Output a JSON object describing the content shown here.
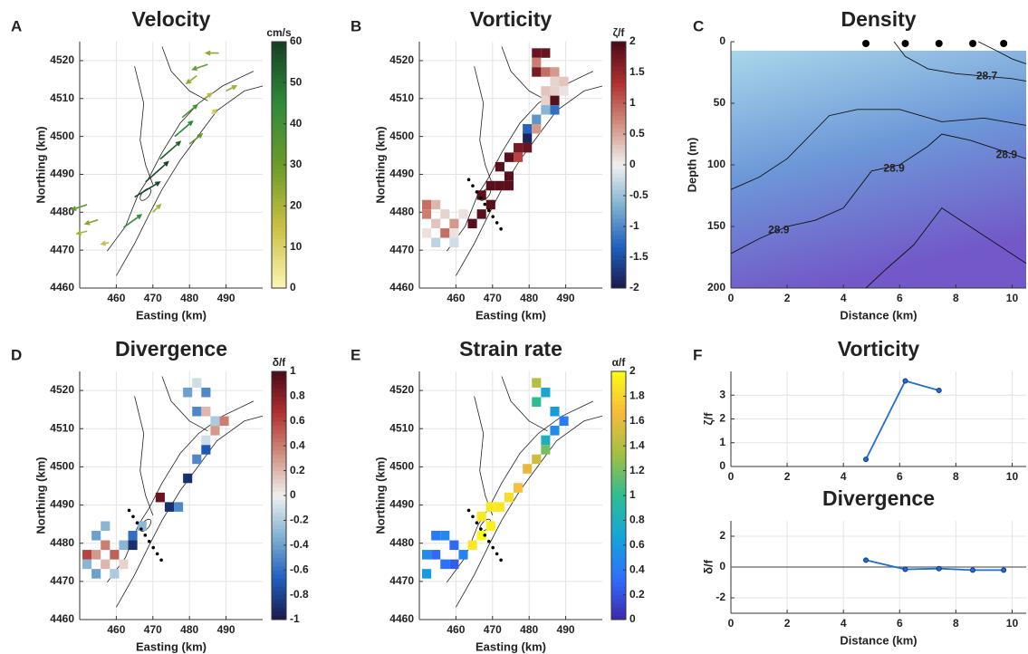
{
  "chart_data": [
    {
      "panel": "A",
      "type": "quiver",
      "title": "Velocity",
      "xlabel": "Easting (km)",
      "ylabel": "Northing (km)",
      "xlim": [
        450,
        500
      ],
      "ylim": [
        4460,
        4525
      ],
      "xticks": [
        460,
        470,
        480,
        490
      ],
      "yticks": [
        4460,
        4470,
        4480,
        4490,
        4500,
        4510,
        4520
      ],
      "grid": true,
      "x": [
        488,
        485,
        482,
        490,
        484,
        478,
        476,
        472,
        468,
        465,
        455,
        452,
        458,
        462,
        470,
        480,
        486,
        452
      ],
      "y": [
        4522,
        4519,
        4516,
        4512,
        4510,
        4505,
        4500,
        4494,
        4488,
        4484,
        4478,
        4475,
        4472,
        4476,
        4480,
        4498,
        4506,
        4482
      ],
      "u": [
        -25,
        -30,
        -20,
        20,
        15,
        30,
        35,
        40,
        45,
        50,
        -25,
        -20,
        -15,
        35,
        15,
        25,
        10,
        -30
      ],
      "v": [
        0,
        -10,
        -15,
        10,
        10,
        25,
        30,
        35,
        40,
        30,
        -8,
        -5,
        -3,
        25,
        15,
        20,
        8,
        -10
      ],
      "clabel": "cm/s",
      "clim": [
        0,
        60
      ],
      "cticks": [
        0,
        10,
        20,
        30,
        40,
        50,
        60
      ],
      "colormap": [
        "#fdf6b5",
        "#c9c042",
        "#6d9a2a",
        "#2f8a3c",
        "#173f22"
      ]
    },
    {
      "panel": "B",
      "type": "heatmap",
      "title": "Vorticity",
      "xlabel": "Easting (km)",
      "ylabel": "Northing (km)",
      "xlim": [
        450,
        500
      ],
      "ylim": [
        4460,
        4525
      ],
      "xticks": [
        460,
        470,
        480,
        490
      ],
      "yticks": [
        4460,
        4470,
        4480,
        4490,
        4500,
        4510,
        4520
      ],
      "grid": true,
      "x": [
        482,
        484.5,
        482,
        484.5,
        487,
        482,
        487,
        489.5,
        487,
        489.5,
        484.5,
        484.5,
        487,
        484.5,
        487,
        482,
        479.5,
        482,
        479.5,
        477,
        479.5,
        474.5,
        477,
        472,
        474.5,
        469.5,
        472,
        474.5,
        467,
        469.5,
        467,
        464.5,
        452,
        454.5,
        452,
        457,
        459.5,
        454.5,
        452,
        457,
        459.5,
        454.5,
        459.5,
        462
      ],
      "y": [
        4522,
        4522,
        4519.5,
        4517,
        4517,
        4517,
        4514.5,
        4514.5,
        4512,
        4512,
        4512,
        4509.5,
        4509.5,
        4507,
        4507,
        4504.5,
        4502,
        4502,
        4499.5,
        4497,
        4497,
        4494.5,
        4494.5,
        4492,
        4489.5,
        4487,
        4487,
        4487,
        4484.5,
        4482,
        4479.5,
        4477,
        4482,
        4482,
        4479.5,
        4479.5,
        4477,
        4477,
        4474.5,
        4474.5,
        4474.5,
        4472,
        4472,
        4479.5
      ],
      "values": [
        1.8,
        1.8,
        0.8,
        0.9,
        0.6,
        1.7,
        0.2,
        0.3,
        0.2,
        0.1,
        0.3,
        0.2,
        1.9,
        -0.6,
        -1.2,
        -0.9,
        -1.3,
        0.6,
        -1.9,
        1.7,
        1.8,
        1.9,
        1.2,
        1.9,
        1.9,
        1.9,
        1.9,
        1.9,
        1.9,
        1.9,
        1.9,
        1.9,
        0.9,
        0.4,
        0.8,
        0.2,
        0.6,
        0.3,
        0.1,
        0.9,
        0.1,
        -0.3,
        -0.2,
        0.1
      ],
      "clabel": "ζ/f",
      "clim": [
        -2,
        2
      ],
      "cticks": [
        -2,
        -1.5,
        -1,
        -0.5,
        0,
        0.5,
        1,
        1.5,
        2
      ],
      "colormap": [
        "#1a1a4a",
        "#1f5fbf",
        "#7fb0d0",
        "#f0f0f0",
        "#d09080",
        "#b03030",
        "#4a0a1a"
      ]
    },
    {
      "panel": "C",
      "type": "section",
      "title": "Density",
      "xlabel": "Distance (km)",
      "ylabel": "Depth (m)",
      "xlim": [
        0,
        10.5
      ],
      "ylim": [
        0,
        200
      ],
      "yreverse": true,
      "xticks": [
        0,
        2,
        4,
        6,
        8,
        10
      ],
      "yticks": [
        0,
        50,
        100,
        150,
        200
      ],
      "stations": [
        4.8,
        6.2,
        7.4,
        8.6,
        9.7
      ],
      "contours": [
        {
          "x": [
            5.8,
            6.2,
            7,
            8,
            9,
            10,
            10.5
          ],
          "y": [
            0,
            12,
            22,
            26,
            28,
            30,
            32
          ]
        },
        {
          "x": [
            8.8,
            9.5,
            10,
            10.5
          ],
          "y": [
            0,
            8,
            14,
            18
          ]
        },
        {
          "x": [
            0,
            1,
            2,
            3.5,
            4.5,
            6,
            7.5,
            9,
            10.5
          ],
          "y": [
            120,
            110,
            95,
            60,
            55,
            55,
            65,
            62,
            68
          ]
        },
        {
          "x": [
            0,
            1,
            2,
            3,
            4,
            5,
            6,
            7,
            7.5,
            8.5,
            10.5
          ],
          "y": [
            172,
            160,
            150,
            145,
            135,
            105,
            100,
            85,
            75,
            80,
            95
          ]
        },
        {
          "x": [
            4.8,
            5.5,
            6.5,
            7,
            7.5,
            8.5,
            9.5,
            10.5
          ],
          "y": [
            200,
            185,
            165,
            150,
            135,
            150,
            165,
            180
          ]
        }
      ],
      "annotations": [
        {
          "x": 9.1,
          "y": 28,
          "label": 28.7
        },
        {
          "x": 5.8,
          "y": 103,
          "label": 28.9
        },
        {
          "x": 9.8,
          "y": 92,
          "label": 28.9
        },
        {
          "x": 1.7,
          "y": 153,
          "label": 28.9
        }
      ]
    },
    {
      "panel": "D",
      "type": "heatmap",
      "title": "Divergence",
      "xlabel": "Easting (km)",
      "ylabel": "Northing (km)",
      "xlim": [
        450,
        500
      ],
      "ylim": [
        4460,
        4525
      ],
      "xticks": [
        460,
        470,
        480,
        490
      ],
      "yticks": [
        4460,
        4470,
        4480,
        4490,
        4500,
        4510,
        4520
      ],
      "grid": true,
      "x": [
        452,
        454.5,
        457,
        459.5,
        452,
        454.5,
        457,
        459.5,
        462,
        462,
        454.5,
        457,
        464.5,
        464.5,
        467,
        472,
        474.5,
        477,
        479.5,
        482,
        484.5,
        484.5,
        487,
        489.5,
        482,
        484.5,
        479.5,
        482,
        484.5,
        487
      ],
      "y": [
        4477,
        4477,
        4479.5,
        4477,
        4474.5,
        4472,
        4474.5,
        4472,
        4474.5,
        4479.5,
        4482,
        4484.5,
        4479.5,
        4482,
        4484.5,
        4492,
        4489.5,
        4489.5,
        4497,
        4502,
        4504.5,
        4507,
        4509.5,
        4512,
        4514.5,
        4514.5,
        4519.5,
        4522,
        4519.5,
        4512
      ],
      "values": [
        0.6,
        0.3,
        0.4,
        0.5,
        -0.3,
        -0.4,
        0.2,
        -0.2,
        0.1,
        -0.3,
        -0.4,
        -0.3,
        -0.9,
        -0.6,
        -0.3,
        0.9,
        -0.9,
        -0.5,
        -0.9,
        -0.5,
        -0.7,
        -0.1,
        0.3,
        0.4,
        -0.5,
        0.2,
        -0.4,
        -0.1,
        -0.5,
        -0.2
      ],
      "clabel": "δ/f",
      "clim": [
        -1,
        1
      ],
      "cticks": [
        -1,
        -0.8,
        -0.6,
        -0.4,
        -0.2,
        0,
        0.2,
        0.4,
        0.6,
        0.8,
        1
      ],
      "colormap": [
        "#1a1a4a",
        "#1f5fbf",
        "#7fb0d0",
        "#f0f0f0",
        "#d09080",
        "#b03030",
        "#4a0a1a"
      ]
    },
    {
      "panel": "E",
      "type": "heatmap",
      "title": "Strain rate",
      "xlabel": "Easting (km)",
      "ylabel": "Northing (km)",
      "xlim": [
        450,
        500
      ],
      "ylim": [
        4460,
        4525
      ],
      "xticks": [
        460,
        470,
        480,
        490
      ],
      "yticks": [
        4460,
        4470,
        4480,
        4490,
        4500,
        4510,
        4520
      ],
      "grid": true,
      "x": [
        452,
        454.5,
        457,
        452,
        454.5,
        457,
        459.5,
        459.5,
        462,
        464.5,
        467,
        469.5,
        467,
        472,
        474.5,
        477,
        479.5,
        482,
        484.5,
        484.5,
        487,
        489.5,
        487,
        482,
        484.5,
        482,
        469.5
      ],
      "y": [
        4477,
        4477,
        4474.5,
        4472,
        4482,
        4482,
        4479.5,
        4474.5,
        4477,
        4479.5,
        4482,
        4484.5,
        4487,
        4489.5,
        4492,
        4494.5,
        4499.5,
        4502,
        4504.5,
        4507,
        4509.5,
        4512,
        4514.5,
        4517,
        4519.5,
        4522,
        4489.5
      ],
      "values": [
        0.5,
        0.3,
        0.35,
        0.6,
        0.4,
        0.5,
        0.3,
        0.25,
        0.45,
        1.9,
        2,
        1.95,
        1.9,
        1.9,
        1.85,
        1.7,
        1.6,
        1.5,
        1.2,
        0.8,
        0.5,
        0.4,
        0.6,
        1,
        0.7,
        1.4,
        1.9
      ],
      "clabel": "α/f",
      "clim": [
        0,
        2
      ],
      "cticks": [
        0,
        0.2,
        0.4,
        0.6,
        0.8,
        1,
        1.2,
        1.4,
        1.6,
        1.8,
        2
      ],
      "colormap": [
        "#3e26a8",
        "#2f6ffd",
        "#14a5d8",
        "#2ebd92",
        "#a2c042",
        "#f7ba3c",
        "#f9fb15"
      ]
    },
    {
      "panel": "F",
      "type": "line",
      "title": "Vorticity",
      "ylabel": "ζ/f",
      "xlim": [
        0,
        10.5
      ],
      "ylim": [
        0,
        4
      ],
      "xticks": [
        0,
        2,
        4,
        6,
        8,
        10
      ],
      "yticks": [
        0,
        1,
        2,
        3
      ],
      "grid": true,
      "x": [
        4.8,
        6.2,
        7.4
      ],
      "values": [
        0.3,
        3.6,
        3.2
      ],
      "color": "#1f6fd0"
    },
    {
      "type": "line",
      "title": "Divergence",
      "xlabel": "Distance (km)",
      "ylabel": "δ/f",
      "xlim": [
        0,
        10.5
      ],
      "ylim": [
        -3,
        3
      ],
      "xticks": [
        0,
        2,
        4,
        6,
        8,
        10
      ],
      "yticks": [
        -2,
        0,
        2
      ],
      "grid": true,
      "zeroline": true,
      "x": [
        4.8,
        6.2,
        7.4,
        8.6,
        9.7
      ],
      "values": [
        0.45,
        -0.15,
        -0.1,
        -0.2,
        -0.2
      ],
      "color": "#1f6fd0"
    }
  ]
}
